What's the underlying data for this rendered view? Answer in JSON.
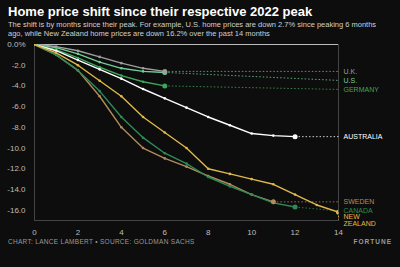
{
  "chart_data": {
    "type": "line",
    "title": "Home price shift since their respective 2022 peak",
    "subtitle": "The shift is by months since their peak. For example, U.S. home prices are down 2.7% since peaking 6 months ago, while New Zealand home prices are down 16.2% over the past 14 months",
    "caption": "CHART: LANCE LAMBERT • SOURCE: GOLDMAN SACHS",
    "credit": "FORTUNE",
    "x": [
      0,
      1,
      2,
      3,
      4,
      5,
      6,
      7,
      8,
      9,
      10,
      11,
      12,
      13,
      14
    ],
    "xlim": [
      0,
      14
    ],
    "xticks": [
      0,
      2,
      4,
      6,
      8,
      10,
      12,
      14
    ],
    "ylim": [
      -17,
      0
    ],
    "yticks": [
      {
        "value": 0,
        "label": "0.0%"
      },
      {
        "value": -2,
        "label": "-2.0"
      },
      {
        "value": -4,
        "label": "-4.0"
      },
      {
        "value": -6,
        "label": "-6.0"
      },
      {
        "value": -8,
        "label": "-8.0"
      },
      {
        "value": -10,
        "label": "-10.0"
      },
      {
        "value": -12,
        "label": "-12.0"
      },
      {
        "value": -14,
        "label": "-14.0"
      },
      {
        "value": -16,
        "label": "-16.0"
      }
    ],
    "grid": false,
    "marker": "circle",
    "series": [
      {
        "name": "U.S.",
        "color": "#6fcf97",
        "values": [
          0,
          -0.3,
          -0.9,
          -1.7,
          -2.3,
          -2.6,
          -2.7,
          null,
          null,
          null,
          null,
          null,
          null,
          null,
          null
        ]
      },
      {
        "name": "U.K.",
        "color": "#9e9e9e",
        "values": [
          0,
          -0.2,
          -0.6,
          -1.2,
          -1.8,
          -2.3,
          -2.6,
          null,
          null,
          null,
          null,
          null,
          null,
          null,
          null
        ]
      },
      {
        "name": "GERMANY",
        "color": "#3fa55b",
        "values": [
          0,
          -0.5,
          -1.3,
          -2.2,
          -3.0,
          -3.6,
          -4.0,
          null,
          null,
          null,
          null,
          null,
          null,
          null,
          null
        ]
      },
      {
        "name": "AUSTRALIA",
        "color": "#ffffff",
        "values": [
          0,
          -0.6,
          -1.5,
          -2.4,
          -3.3,
          -4.3,
          -5.2,
          -6.1,
          -7.0,
          -7.8,
          -8.6,
          -8.8,
          -8.9,
          null,
          null
        ]
      },
      {
        "name": "SWEDEN",
        "color": "#b08d5a",
        "values": [
          0,
          -1.0,
          -2.5,
          -5.0,
          -8.0,
          -10.0,
          -11.0,
          -11.8,
          -12.7,
          -13.5,
          -14.5,
          -15.2,
          null,
          null,
          null
        ]
      },
      {
        "name": "CANADA",
        "color": "#2e8b57",
        "values": [
          0,
          -1.0,
          -2.5,
          -4.5,
          -7.0,
          -9.0,
          -10.5,
          -11.5,
          -12.8,
          -13.7,
          -14.5,
          -15.3,
          -15.7,
          null,
          null
        ]
      },
      {
        "name": "NEW ZEALAND",
        "color": "#e0b84a",
        "values": [
          0,
          -0.8,
          -2.0,
          -3.5,
          -5.0,
          -7.0,
          -8.5,
          -10.0,
          -12.0,
          -12.5,
          -13.0,
          -13.5,
          -14.5,
          -15.5,
          -16.2
        ]
      }
    ]
  }
}
